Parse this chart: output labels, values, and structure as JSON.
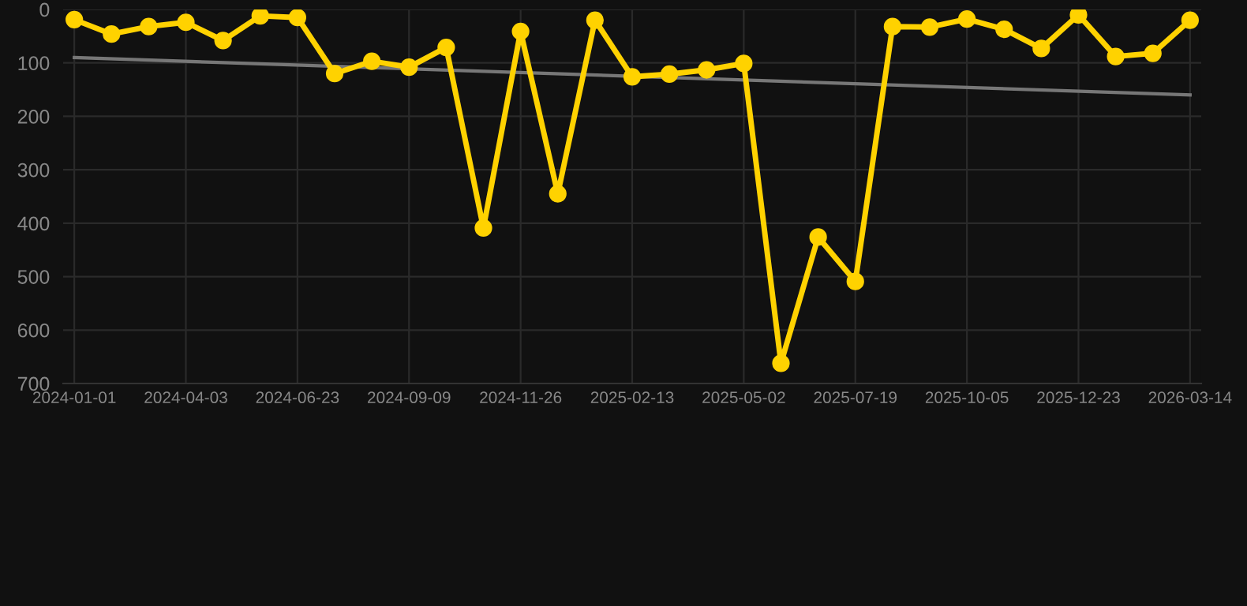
{
  "chart_data": {
    "type": "line",
    "categories": [
      "2024-01-01",
      null,
      null,
      "2024-04-03",
      null,
      null,
      "2024-06-23",
      null,
      null,
      "2024-09-09",
      null,
      null,
      "2024-11-26",
      null,
      null,
      "2025-02-13",
      null,
      null,
      "2025-05-02",
      null,
      null,
      "2025-07-19",
      null,
      null,
      "2025-10-05",
      null,
      null,
      "2025-12-23",
      null,
      null,
      "2026-03-14"
    ],
    "series": [
      {
        "color": "#ffd200",
        "marker": "circle",
        "values": [
          19,
          46,
          32,
          24,
          58,
          12,
          15,
          120,
          97,
          108,
          71,
          409,
          41,
          345,
          20,
          126,
          121,
          113,
          101,
          662,
          426,
          509,
          32,
          33,
          18,
          37,
          73,
          10,
          88,
          82,
          20
        ]
      },
      {
        "color": "#777777",
        "marker": "none",
        "values": [
          90,
          null,
          null,
          null,
          null,
          null,
          null,
          null,
          null,
          null,
          null,
          null,
          null,
          null,
          null,
          null,
          null,
          null,
          null,
          null,
          null,
          null,
          null,
          null,
          null,
          null,
          null,
          null,
          null,
          null,
          160
        ]
      }
    ],
    "ylim": [
      700,
      0
    ],
    "yticks": [
      0,
      100,
      200,
      300,
      400,
      500,
      600,
      700
    ],
    "grid": true
  }
}
